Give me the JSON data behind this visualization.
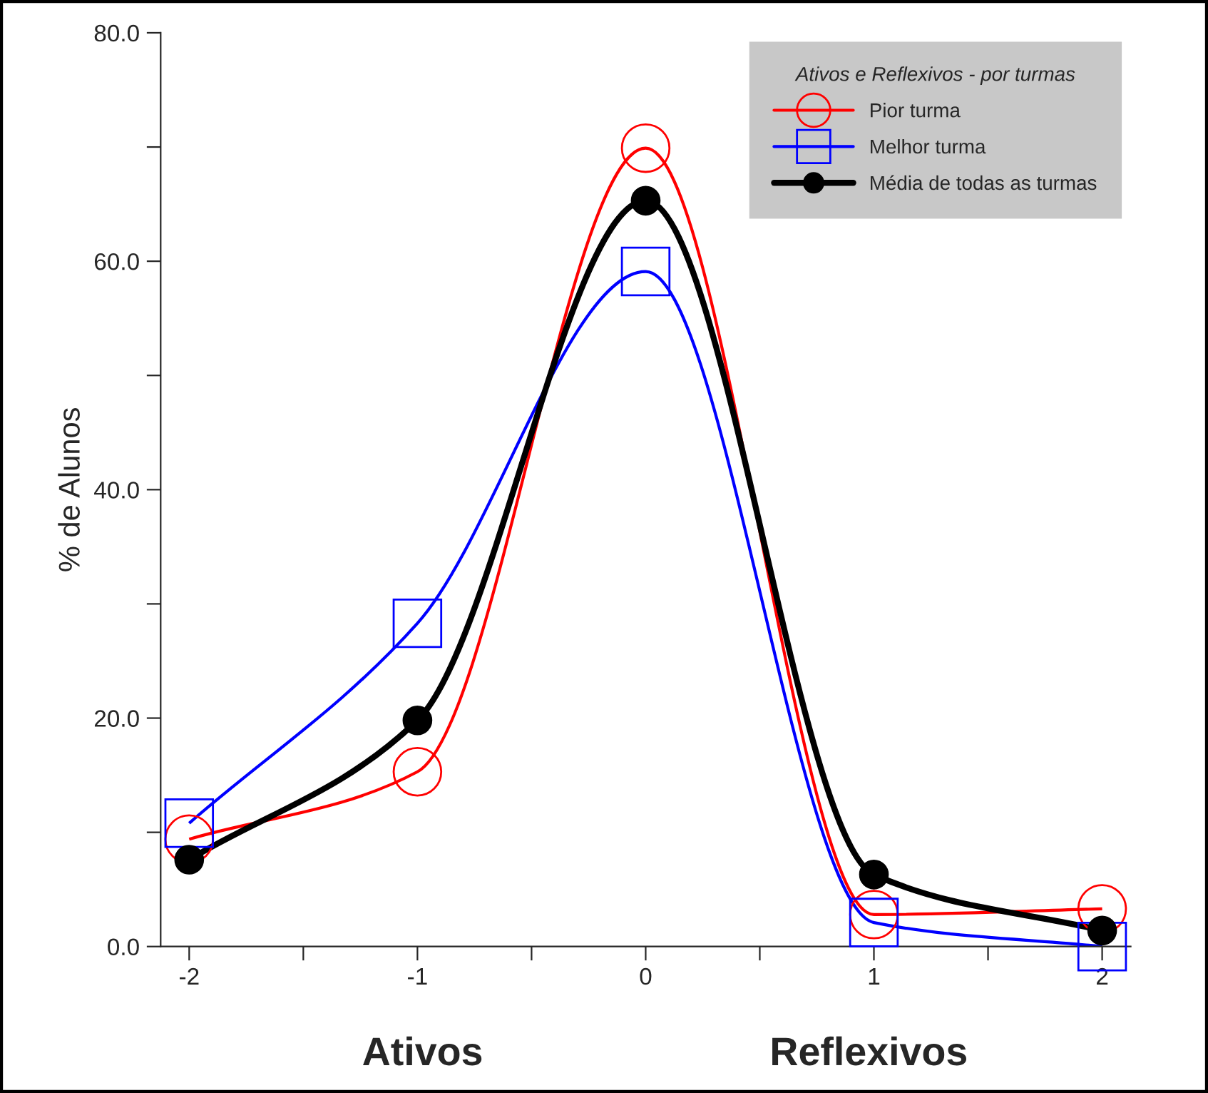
{
  "chart_data": {
    "type": "line",
    "x": [
      -2,
      -1,
      0,
      1,
      2
    ],
    "ylabel": "% de Alunos",
    "legend_title": "Ativos e Reflexivos - por turmas",
    "series": [
      {
        "name": "Pior turma",
        "color": "#ff0000",
        "marker": "circle",
        "values": [
          9.4,
          15.3,
          69.9,
          2.8,
          3.3
        ]
      },
      {
        "name": "Melhor turma",
        "color": "#0000ff",
        "marker": "square",
        "values": [
          10.8,
          28.3,
          59.1,
          2.1,
          0.0
        ]
      },
      {
        "name": "Média de todas as turmas",
        "color": "#000000",
        "marker": "circle",
        "values": [
          7.6,
          19.8,
          65.3,
          6.3,
          1.4
        ]
      }
    ],
    "xlim": [
      -2.125,
      2.125
    ],
    "ylim": [
      0,
      80
    ],
    "xticks": [
      -2,
      {
        "value": -1.5,
        "label": null
      },
      -1,
      {
        "value": -0.5,
        "label": null
      },
      0,
      {
        "value": 0.5,
        "label": null
      },
      1,
      {
        "value": 1.5,
        "label": null
      },
      2
    ],
    "yticks": [
      {
        "value": 0,
        "label": "0.0"
      },
      {
        "value": 10,
        "label": null
      },
      {
        "value": 20,
        "label": "20.0"
      },
      {
        "value": 30,
        "label": null
      },
      {
        "value": 40,
        "label": "40.0"
      },
      {
        "value": 50,
        "label": null
      },
      {
        "value": 60,
        "label": "60.0"
      },
      {
        "value": 70,
        "label": null
      },
      {
        "value": 80,
        "label": "80.0"
      }
    ],
    "annotations": [
      "Ativos",
      "Reflexivos"
    ],
    "legend": "top right",
    "grid": false
  }
}
